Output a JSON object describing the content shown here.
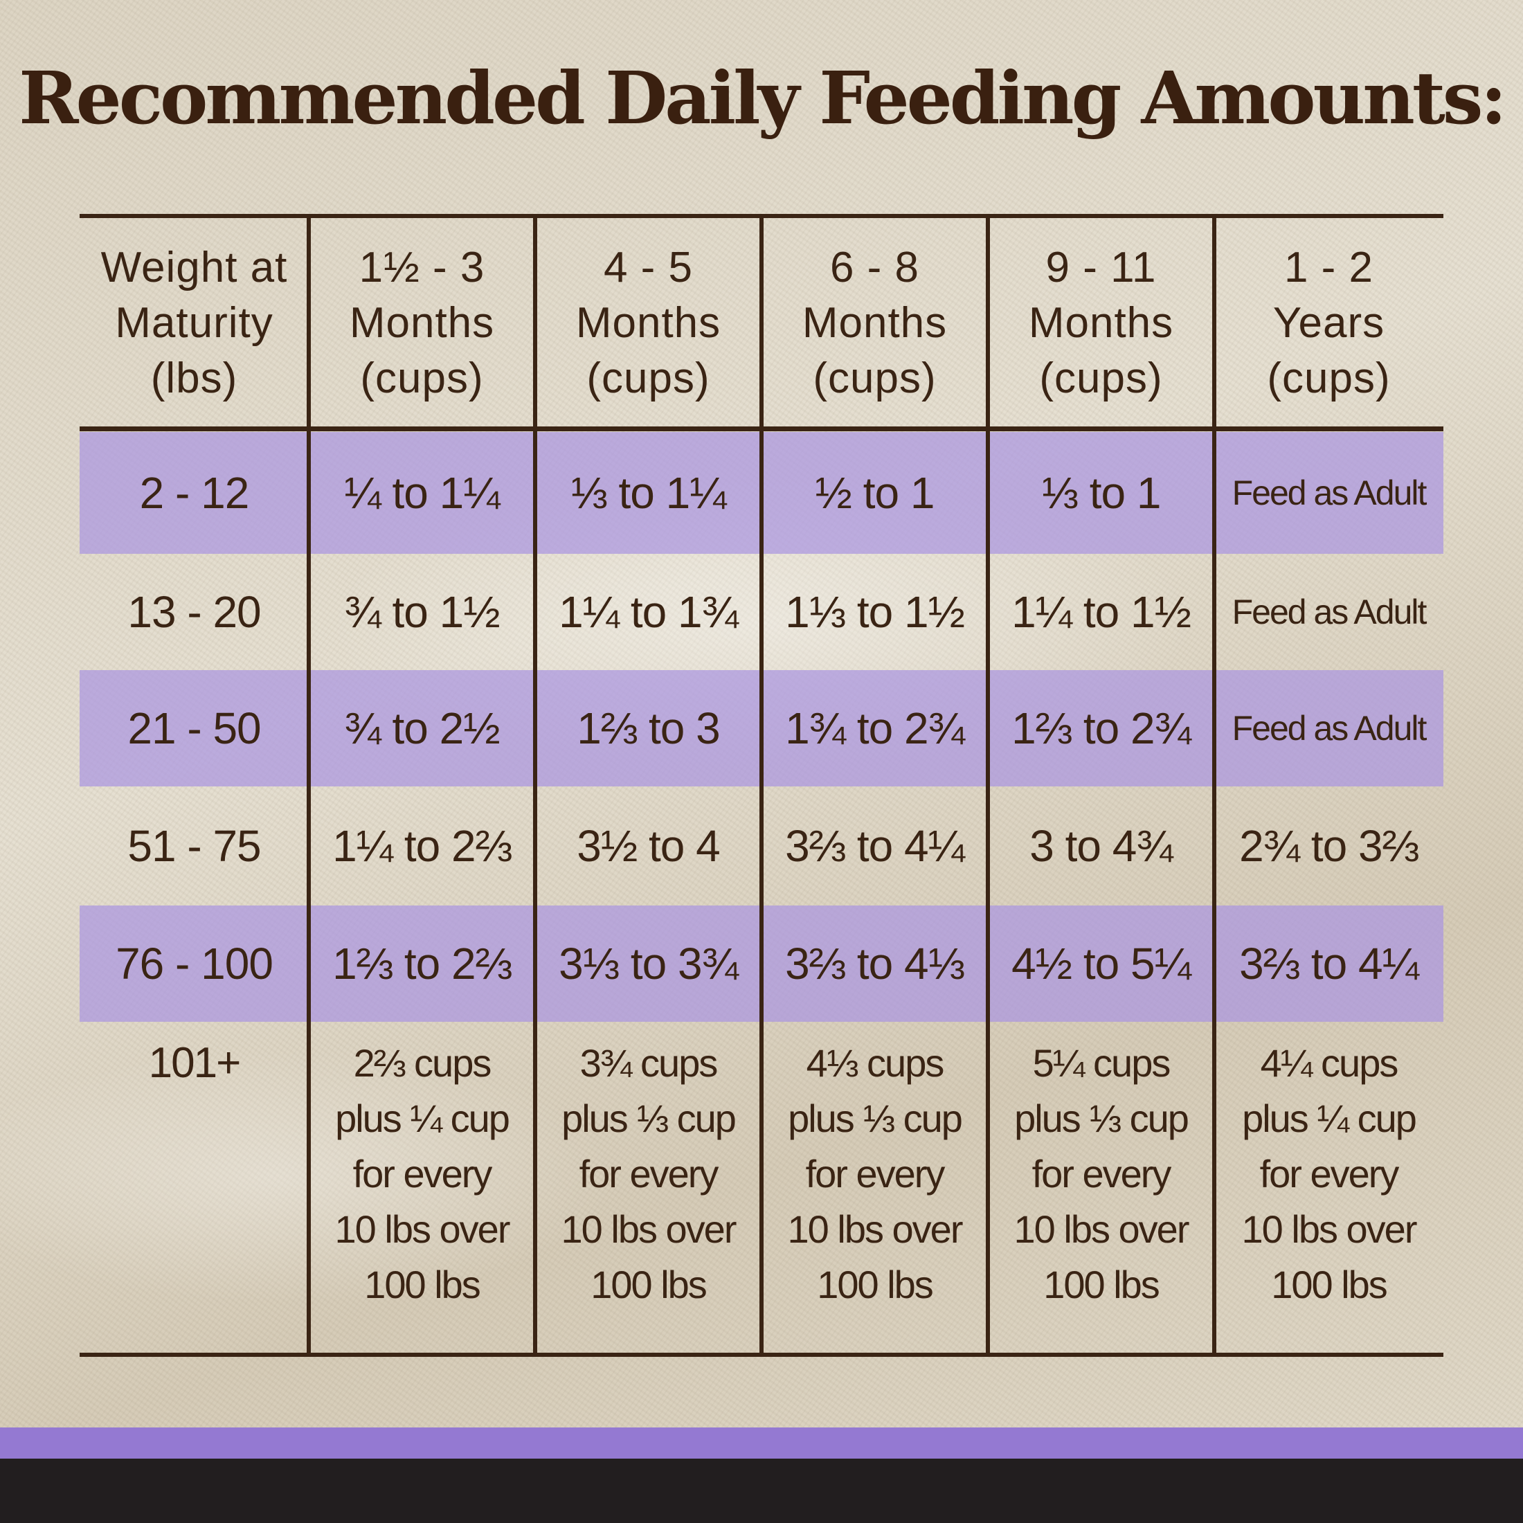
{
  "title": "Recommended Daily Feeding Amounts:",
  "table": {
    "headers": [
      "Weight at\nMaturity\n(lbs)",
      "1½ - 3\nMonths\n(cups)",
      "4 - 5\nMonths\n(cups)",
      "6 - 8\nMonths\n(cups)",
      "9 - 11\nMonths\n(cups)",
      "1 - 2\nYears\n(cups)"
    ],
    "rows": [
      [
        "2 - 12",
        "¼ to 1¼",
        "⅓ to 1¼",
        "½ to 1",
        "⅓ to 1",
        "Feed as Adult"
      ],
      [
        "13 - 20",
        "¾ to 1½",
        "1¼ to 1¾",
        "1⅓ to 1½",
        "1¼ to 1½",
        "Feed as Adult"
      ],
      [
        "21 - 50",
        "¾ to 2½",
        "1⅔ to 3",
        "1¾ to 2¾",
        "1⅔ to 2¾",
        "Feed as Adult"
      ],
      [
        "51 - 75",
        "1¼ to 2⅔",
        "3½ to 4",
        "3⅔ to 4¼",
        "3 to 4¾",
        "2¾ to 3⅔"
      ],
      [
        "76 - 100",
        "1⅔ to 2⅔",
        "3⅓ to 3¾",
        "3⅔ to 4⅓",
        "4½ to 5¼",
        "3⅔ to 4¼"
      ],
      [
        "101+",
        "2⅔ cups\nplus ¼ cup\nfor every\n10 lbs over\n100 lbs",
        "3¾ cups\nplus ⅓ cup\nfor every\n10 lbs over\n100 lbs",
        "4⅓ cups\nplus ⅓ cup\nfor every\n10 lbs over\n100 lbs",
        "5¼ cups\nplus ⅓ cup\nfor every\n10 lbs over\n100 lbs",
        "4¼ cups\nplus ¼ cup\nfor every\n10 lbs over\n100 lbs"
      ]
    ]
  },
  "colors": {
    "text": "#3a2414",
    "band": "#b3a6dc",
    "stripe": "#9479d2",
    "footer": "#221e1f"
  }
}
